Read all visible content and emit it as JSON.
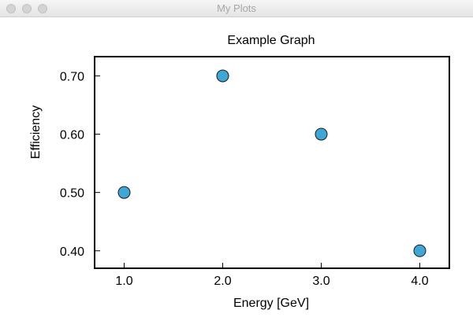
{
  "window": {
    "title": "My Plots"
  },
  "chart_data": {
    "type": "scatter",
    "title": "Example Graph",
    "xlabel": "Energy [GeV]",
    "ylabel": "Efficiency",
    "x": [
      1.0,
      2.0,
      3.0,
      4.0
    ],
    "y": [
      0.5,
      0.7,
      0.6,
      0.4
    ],
    "xlim": [
      0.7,
      4.3
    ],
    "ylim": [
      0.37,
      0.733
    ],
    "xticks": [
      1.0,
      2.0,
      3.0,
      4.0
    ],
    "xtick_labels": [
      "1.0",
      "2.0",
      "3.0",
      "4.0"
    ],
    "yticks": [
      0.4,
      0.5,
      0.6,
      0.7
    ],
    "ytick_labels": [
      "0.40",
      "0.50",
      "0.60",
      "0.70"
    ],
    "grid": false,
    "marker_color": "#3fa7d6",
    "marker_edge_color": "#1a1a1a"
  }
}
